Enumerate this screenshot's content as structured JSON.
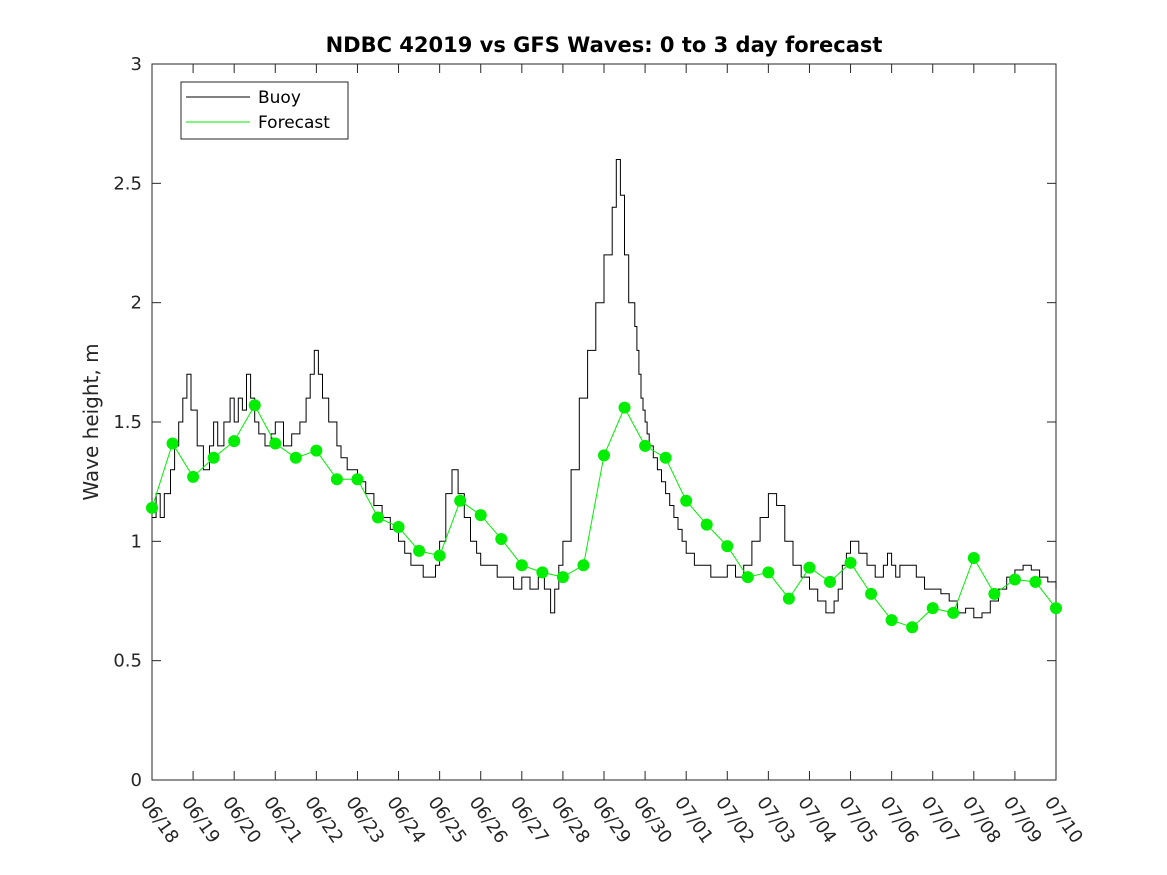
{
  "colors": {
    "buoy": "#000000",
    "forecast": "#00ee00",
    "axis": "#262626",
    "background": "#ffffff"
  },
  "chart_data": {
    "type": "line",
    "title": "NDBC 42019 vs GFS Waves: 0 to 3 day forecast",
    "xlabel": "",
    "ylabel": "Wave height, m",
    "ylim": [
      0,
      3
    ],
    "yticks": [
      0,
      0.5,
      1,
      1.5,
      2,
      2.5,
      3
    ],
    "ytick_labels": [
      "0",
      "0.5",
      "1",
      "1.5",
      "2",
      "2.5",
      "3"
    ],
    "xlim": [
      "06/18",
      "07/10"
    ],
    "xtick_labels": [
      "06/18",
      "06/19",
      "06/20",
      "06/21",
      "06/22",
      "06/23",
      "06/24",
      "06/25",
      "06/26",
      "06/27",
      "06/28",
      "06/29",
      "06/30",
      "07/01",
      "07/02",
      "07/03",
      "07/04",
      "07/05",
      "07/06",
      "07/07",
      "07/08",
      "07/09",
      "07/10"
    ],
    "grid": false,
    "legend": {
      "position": "top-left",
      "entries": [
        "Buoy",
        "Forecast"
      ]
    },
    "series": [
      {
        "name": "Buoy",
        "x": [
          0.0,
          0.1,
          0.2,
          0.3,
          0.45,
          0.55,
          0.65,
          0.75,
          0.85,
          0.95,
          1.1,
          1.25,
          1.4,
          1.5,
          1.6,
          1.75,
          1.9,
          2.0,
          2.1,
          2.2,
          2.3,
          2.4,
          2.5,
          2.6,
          2.75,
          2.9,
          3.0,
          3.2,
          3.4,
          3.6,
          3.75,
          3.85,
          3.95,
          4.05,
          4.15,
          4.3,
          4.5,
          4.6,
          4.75,
          4.9,
          5.0,
          5.2,
          5.4,
          5.6,
          5.8,
          6.0,
          6.15,
          6.3,
          6.45,
          6.6,
          6.75,
          6.9,
          7.0,
          7.15,
          7.3,
          7.45,
          7.6,
          7.75,
          7.9,
          8.0,
          8.2,
          8.4,
          8.6,
          8.8,
          9.0,
          9.2,
          9.4,
          9.55,
          9.7,
          9.8,
          9.9,
          10.0,
          10.2,
          10.4,
          10.6,
          10.8,
          11.0,
          11.2,
          11.3,
          11.4,
          11.5,
          11.6,
          11.7,
          11.75,
          11.8,
          11.85,
          11.9,
          11.95,
          12.0,
          12.05,
          12.1,
          12.2,
          12.3,
          12.4,
          12.5,
          12.6,
          12.7,
          12.8,
          12.9,
          13.0,
          13.2,
          13.4,
          13.6,
          13.8,
          14.0,
          14.2,
          14.4,
          14.6,
          14.8,
          15.0,
          15.2,
          15.4,
          15.6,
          15.8,
          16.0,
          16.2,
          16.4,
          16.5,
          16.6,
          16.7,
          16.8,
          16.9,
          17.0,
          17.2,
          17.4,
          17.6,
          17.8,
          17.9,
          18.0,
          18.1,
          18.2,
          18.4,
          18.6,
          18.8,
          19.0,
          19.2,
          19.4,
          19.6,
          19.8,
          20.0,
          20.2,
          20.4,
          20.6,
          20.8,
          21.0,
          21.2,
          21.4,
          21.6,
          21.8,
          22.0
        ],
        "values": [
          1.1,
          1.2,
          1.1,
          1.2,
          1.3,
          1.4,
          1.5,
          1.6,
          1.7,
          1.55,
          1.4,
          1.3,
          1.4,
          1.5,
          1.4,
          1.5,
          1.6,
          1.5,
          1.6,
          1.55,
          1.7,
          1.6,
          1.5,
          1.45,
          1.4,
          1.45,
          1.5,
          1.4,
          1.45,
          1.5,
          1.6,
          1.7,
          1.8,
          1.7,
          1.6,
          1.5,
          1.4,
          1.35,
          1.3,
          1.3,
          1.25,
          1.2,
          1.15,
          1.1,
          1.05,
          1.0,
          0.95,
          0.9,
          0.9,
          0.85,
          0.85,
          0.9,
          1.0,
          1.2,
          1.3,
          1.2,
          1.1,
          1.0,
          0.95,
          0.9,
          0.9,
          0.85,
          0.85,
          0.8,
          0.85,
          0.8,
          0.85,
          0.8,
          0.7,
          0.8,
          0.9,
          1.0,
          1.3,
          1.6,
          1.8,
          2.0,
          2.2,
          2.4,
          2.6,
          2.45,
          2.2,
          2.0,
          2.0,
          1.9,
          1.8,
          1.7,
          1.6,
          1.55,
          1.5,
          1.45,
          1.4,
          1.35,
          1.3,
          1.25,
          1.2,
          1.15,
          1.1,
          1.05,
          1.0,
          0.95,
          0.9,
          0.9,
          0.85,
          0.85,
          0.9,
          0.85,
          0.9,
          1.0,
          1.1,
          1.2,
          1.15,
          1.0,
          0.9,
          0.85,
          0.8,
          0.75,
          0.7,
          0.7,
          0.75,
          0.8,
          0.9,
          0.95,
          1.0,
          0.95,
          0.9,
          0.85,
          0.9,
          0.95,
          0.9,
          0.85,
          0.9,
          0.9,
          0.85,
          0.8,
          0.8,
          0.78,
          0.75,
          0.7,
          0.72,
          0.68,
          0.7,
          0.75,
          0.8,
          0.85,
          0.88,
          0.9,
          0.88,
          0.85,
          0.83,
          0.8
        ],
        "color": "#000000"
      },
      {
        "name": "Forecast",
        "x": [
          0.0,
          0.5,
          1.0,
          1.5,
          2.0,
          2.5,
          3.0,
          3.5,
          4.0,
          4.5,
          5.0,
          5.5,
          6.0,
          6.5,
          7.0,
          7.5,
          8.0,
          8.5,
          9.0,
          9.5,
          10.0,
          10.5,
          11.0,
          11.5,
          12.0,
          12.5,
          13.0,
          13.5,
          14.0,
          14.5,
          15.0,
          15.5,
          16.0,
          16.5,
          17.0,
          17.5,
          18.0,
          18.5,
          19.0,
          19.5,
          20.0,
          20.5,
          21.0,
          21.5,
          22.0
        ],
        "values": [
          1.14,
          1.41,
          1.27,
          1.35,
          1.42,
          1.57,
          1.41,
          1.35,
          1.38,
          1.26,
          1.26,
          1.1,
          1.06,
          0.96,
          0.94,
          1.17,
          1.11,
          1.01,
          0.9,
          0.87,
          0.85,
          0.9,
          1.36,
          1.56,
          1.4,
          1.35,
          1.17,
          1.07,
          0.98,
          0.85,
          0.87,
          0.76,
          0.89,
          0.83,
          0.91,
          0.78,
          0.67,
          0.64,
          0.72,
          0.7,
          0.93,
          0.78,
          0.84,
          0.83,
          0.72
        ],
        "color": "#00ee00"
      }
    ]
  }
}
